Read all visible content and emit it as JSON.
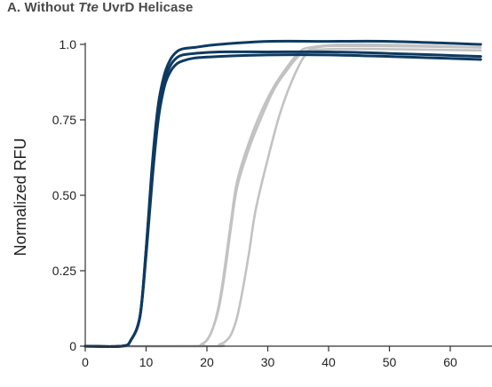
{
  "chart_data": {
    "type": "line",
    "title": {
      "prefix": "A. Without ",
      "italic": "Tte",
      "suffix": " UvrD Helicase"
    },
    "xlabel": "",
    "ylabel": "Normalized RFU",
    "xlim": [
      0,
      65
    ],
    "ylim": [
      0,
      1.0
    ],
    "x_ticks": [
      "0",
      "10",
      "20",
      "30",
      "40",
      "50",
      "60"
    ],
    "y_ticks": [
      "0",
      "0.25",
      "0.50",
      "0.75",
      "1.0"
    ],
    "grid": false,
    "legend": "none",
    "colors": {
      "dark": "#0e3a61",
      "light": "#c2c2c2"
    },
    "series": [
      {
        "color": "dark",
        "x": [
          0,
          6,
          7.5,
          9,
          10,
          11,
          12,
          13,
          14,
          15,
          16,
          18,
          22,
          30,
          40,
          50,
          65
        ],
        "y": [
          0,
          0,
          0.02,
          0.1,
          0.32,
          0.6,
          0.8,
          0.9,
          0.95,
          0.975,
          0.985,
          0.99,
          1.0,
          1.01,
          1.01,
          1.01,
          1.0
        ]
      },
      {
        "color": "dark",
        "x": [
          0,
          6,
          7.5,
          9,
          10,
          11,
          12,
          13,
          14,
          15,
          16,
          18,
          22,
          30,
          40,
          50,
          65
        ],
        "y": [
          0,
          0,
          0.02,
          0.1,
          0.32,
          0.58,
          0.78,
          0.88,
          0.93,
          0.955,
          0.965,
          0.97,
          0.975,
          0.975,
          0.975,
          0.97,
          0.96
        ]
      },
      {
        "color": "dark",
        "x": [
          0,
          6,
          7.5,
          9,
          10,
          11,
          12,
          13,
          14,
          15,
          16,
          18,
          22,
          30,
          40,
          50,
          65
        ],
        "y": [
          0,
          0,
          0.02,
          0.1,
          0.3,
          0.55,
          0.75,
          0.86,
          0.91,
          0.935,
          0.945,
          0.955,
          0.96,
          0.965,
          0.965,
          0.96,
          0.95
        ]
      },
      {
        "color": "light",
        "x": [
          0,
          18,
          19,
          20,
          21,
          22,
          23,
          24,
          25,
          27,
          29,
          31,
          33,
          35,
          37,
          45,
          65
        ],
        "y": [
          0,
          0,
          0.005,
          0.02,
          0.06,
          0.14,
          0.27,
          0.42,
          0.55,
          0.68,
          0.78,
          0.86,
          0.92,
          0.97,
          0.99,
          1.0,
          0.99
        ]
      },
      {
        "color": "light",
        "x": [
          0,
          18,
          19,
          20,
          21,
          22,
          23,
          24,
          25,
          27,
          29,
          31,
          33,
          35,
          37,
          45,
          65
        ],
        "y": [
          0,
          0,
          0.005,
          0.02,
          0.06,
          0.13,
          0.25,
          0.4,
          0.53,
          0.66,
          0.76,
          0.85,
          0.91,
          0.96,
          0.98,
          0.985,
          0.98
        ]
      },
      {
        "color": "light",
        "x": [
          0,
          21,
          22,
          23,
          24,
          25,
          26,
          27,
          28,
          30,
          32,
          34,
          36,
          38,
          45,
          65
        ],
        "y": [
          0,
          0,
          0.005,
          0.015,
          0.04,
          0.1,
          0.2,
          0.32,
          0.45,
          0.62,
          0.77,
          0.88,
          0.96,
          0.99,
          0.995,
          0.99
        ]
      }
    ]
  }
}
